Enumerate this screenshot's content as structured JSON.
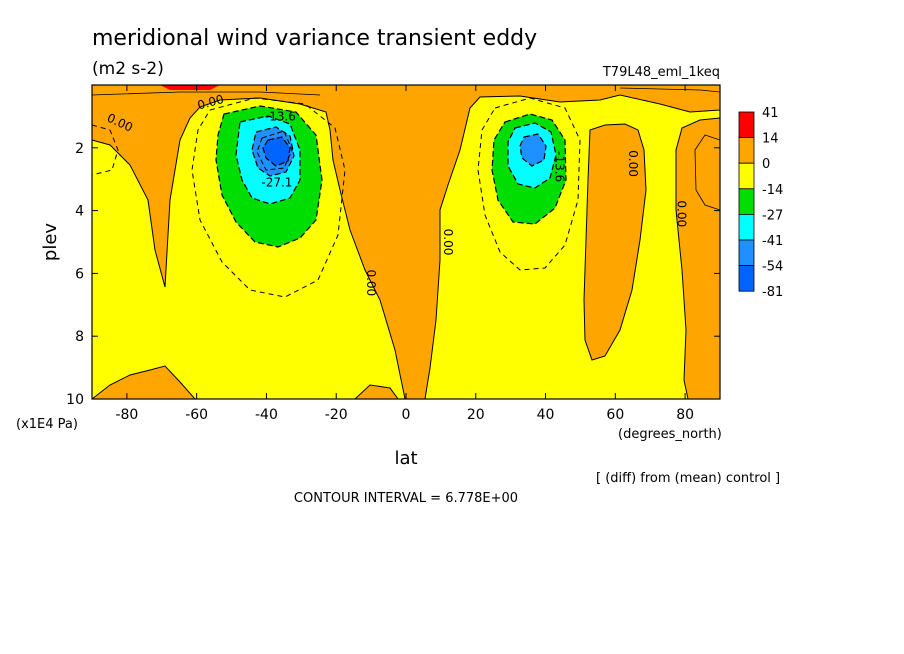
{
  "chart_data": {
    "type": "contour",
    "title": "meridional wind variance transient eddy",
    "units": "(m2 s-2)",
    "run_label": "T79L48_eml_1keq",
    "xlabel": "lat",
    "x_units": "(degrees_north)",
    "ylabel": "plev",
    "y_units": "(x1E4 Pa)",
    "xlim": [
      -90,
      90
    ],
    "ylim": [
      10,
      0
    ],
    "x_ticks": [
      -80,
      -60,
      -40,
      -20,
      0,
      20,
      40,
      60,
      80
    ],
    "x_tick_labels": [
      "-80",
      "-60",
      "-40",
      "-20",
      "0",
      "20",
      "40",
      "60",
      "80"
    ],
    "y_ticks": [
      2,
      4,
      6,
      8,
      10
    ],
    "y_tick_labels": [
      "2",
      "4",
      "6",
      "8",
      "10"
    ],
    "contour_interval_text": "CONTOUR INTERVAL = 6.778E+00",
    "diff_note": "[ (diff) from (mean) control ]",
    "contour_labels": [
      {
        "text": "0.00",
        "lat": -82,
        "plev": 1.2,
        "rotate": 25
      },
      {
        "text": "0.00",
        "lat": -56,
        "plev": 0.55,
        "rotate": -15
      },
      {
        "text": "-13.6",
        "lat": -36,
        "plev": 1.0,
        "rotate": 0
      },
      {
        "text": "-27.1",
        "lat": -37,
        "plev": 3.1,
        "rotate": 0
      },
      {
        "text": "0.00",
        "lat": -10,
        "plev": 6.3,
        "rotate": 90
      },
      {
        "text": "0.00",
        "lat": 12,
        "plev": 5.0,
        "rotate": 90
      },
      {
        "text": "-13.6",
        "lat": 44,
        "plev": 2.6,
        "rotate": 90
      },
      {
        "text": "0.00",
        "lat": 65,
        "plev": 2.5,
        "rotate": 90
      },
      {
        "text": "0.00",
        "lat": 79,
        "plev": 4.1,
        "rotate": 90
      }
    ],
    "legend": {
      "labels": [
        "41",
        "14",
        "0",
        "-14",
        "-27",
        "-41",
        "-54",
        "-81"
      ],
      "colors": [
        "#ff0000",
        "#ffa500",
        "#ffff00",
        "#00dd00",
        "#00ffff",
        "#1e90ff",
        "#0064ff"
      ]
    }
  }
}
